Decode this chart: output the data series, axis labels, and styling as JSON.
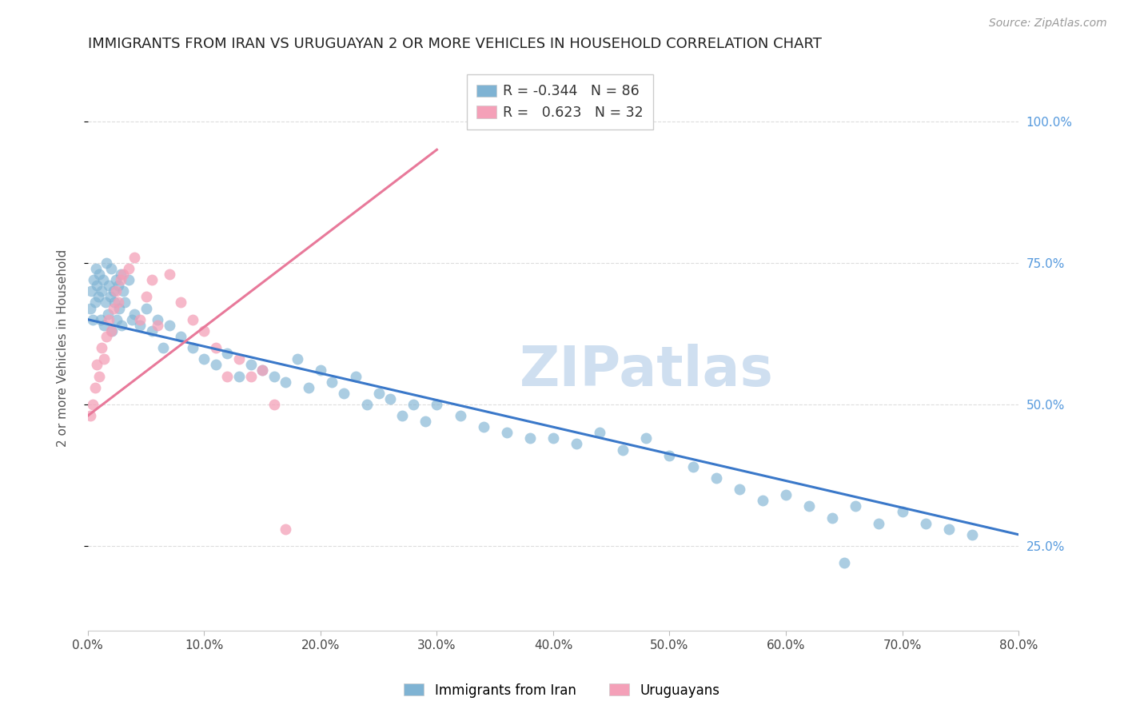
{
  "title": "IMMIGRANTS FROM IRAN VS URUGUAYAN 2 OR MORE VEHICLES IN HOUSEHOLD CORRELATION CHART",
  "source": "Source: ZipAtlas.com",
  "ylabel": "2 or more Vehicles in Household",
  "series1_label": "Immigrants from Iran",
  "series1_color": "#7fb3d3",
  "series1_R": "-0.344",
  "series1_N": "86",
  "series2_label": "Uruguayans",
  "series2_color": "#f4a0b8",
  "series2_R": "0.623",
  "series2_N": "32",
  "line1_color": "#3a78c9",
  "line2_color": "#e8799a",
  "line1_x": [
    0,
    80
  ],
  "line1_y": [
    65,
    27
  ],
  "line2_x": [
    0,
    30
  ],
  "line2_y": [
    48,
    95
  ],
  "watermark": "ZIPatlas",
  "watermark_color": "#cfdff0",
  "background_color": "#ffffff",
  "grid_color": "#dddddd",
  "right_tick_color": "#5599dd",
  "xlim": [
    0,
    80
  ],
  "ylim": [
    10,
    110
  ],
  "x_ticks": [
    0,
    10,
    20,
    30,
    40,
    50,
    60,
    70,
    80
  ],
  "y_ticks": [
    25,
    50,
    75,
    100
  ],
  "title_fontsize": 13,
  "axis_fontsize": 11,
  "scatter_size": 100,
  "series1_x": [
    0.2,
    0.3,
    0.4,
    0.5,
    0.6,
    0.7,
    0.8,
    0.9,
    1.0,
    1.1,
    1.2,
    1.3,
    1.4,
    1.5,
    1.6,
    1.7,
    1.8,
    1.9,
    2.0,
    2.1,
    2.2,
    2.3,
    2.4,
    2.5,
    2.6,
    2.7,
    2.8,
    2.9,
    3.0,
    3.2,
    3.5,
    3.8,
    4.0,
    4.5,
    5.0,
    5.5,
    6.0,
    6.5,
    7.0,
    8.0,
    9.0,
    10.0,
    11.0,
    12.0,
    13.0,
    14.0,
    15.0,
    16.0,
    17.0,
    18.0,
    19.0,
    20.0,
    21.0,
    22.0,
    23.0,
    24.0,
    25.0,
    26.0,
    27.0,
    28.0,
    29.0,
    30.0,
    32.0,
    34.0,
    36.0,
    38.0,
    40.0,
    42.0,
    44.0,
    46.0,
    48.0,
    50.0,
    52.0,
    54.0,
    56.0,
    58.0,
    60.0,
    62.0,
    64.0,
    66.0,
    68.0,
    70.0,
    72.0,
    74.0,
    76.0,
    65.0
  ],
  "series1_y": [
    67,
    70,
    65,
    72,
    68,
    74,
    71,
    69,
    73,
    65,
    70,
    72,
    64,
    68,
    75,
    66,
    71,
    69,
    74,
    63,
    70,
    68,
    72,
    65,
    71,
    67,
    73,
    64,
    70,
    68,
    72,
    65,
    66,
    64,
    67,
    63,
    65,
    60,
    64,
    62,
    60,
    58,
    57,
    59,
    55,
    57,
    56,
    55,
    54,
    58,
    53,
    56,
    54,
    52,
    55,
    50,
    52,
    51,
    48,
    50,
    47,
    50,
    48,
    46,
    45,
    44,
    44,
    43,
    45,
    42,
    44,
    41,
    39,
    37,
    35,
    33,
    34,
    32,
    30,
    32,
    29,
    31,
    29,
    28,
    27,
    22
  ],
  "series2_x": [
    0.2,
    0.4,
    0.6,
    0.8,
    1.0,
    1.2,
    1.4,
    1.6,
    1.8,
    2.0,
    2.2,
    2.4,
    2.6,
    2.8,
    3.0,
    3.5,
    4.0,
    4.5,
    5.0,
    5.5,
    6.0,
    7.0,
    8.0,
    9.0,
    10.0,
    11.0,
    12.0,
    13.0,
    14.0,
    15.0,
    16.0,
    17.0
  ],
  "series2_y": [
    48,
    50,
    53,
    57,
    55,
    60,
    58,
    62,
    65,
    63,
    67,
    70,
    68,
    72,
    73,
    74,
    76,
    65,
    69,
    72,
    64,
    73,
    68,
    65,
    63,
    60,
    55,
    58,
    55,
    56,
    50,
    28
  ]
}
